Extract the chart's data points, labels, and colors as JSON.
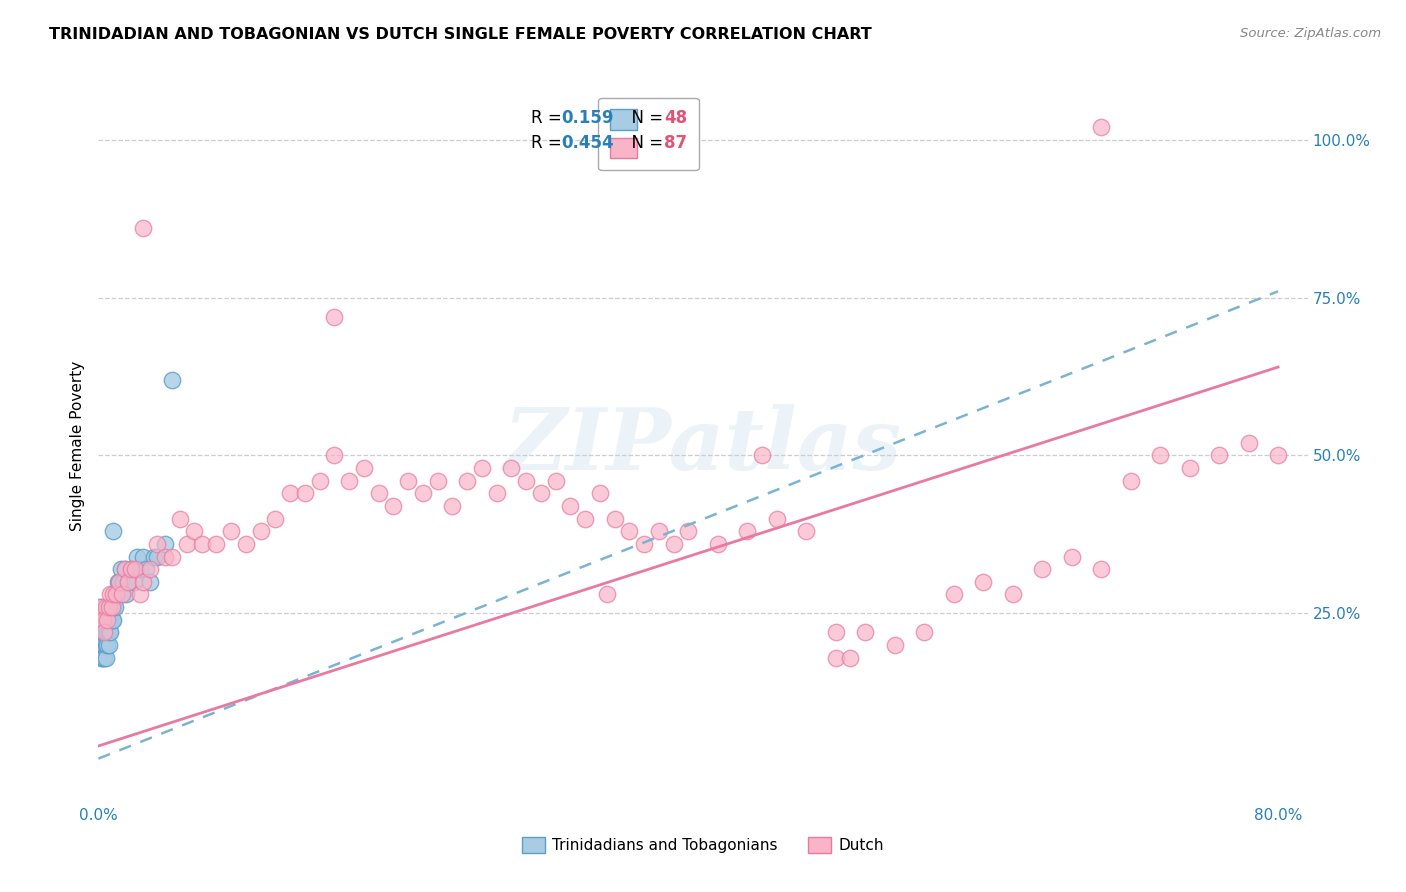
{
  "title": "TRINIDADIAN AND TOBAGONIAN VS DUTCH SINGLE FEMALE POVERTY CORRELATION CHART",
  "source": "Source: ZipAtlas.com",
  "ylabel": "Single Female Poverty",
  "xlim": [
    0.0,
    0.82
  ],
  "ylim": [
    -0.05,
    1.08
  ],
  "color_blue": "#a8cce4",
  "color_pink": "#f9b4c8",
  "color_blue_edge": "#5a9ec9",
  "color_pink_edge": "#e87aa0",
  "color_blue_line": "#7ab3d4",
  "color_pink_line": "#e87aa0",
  "R_blue": 0.159,
  "N_blue": 48,
  "R_pink": 0.454,
  "N_pink": 87,
  "watermark": "ZIPatlas",
  "blue_trend_x0": 0.0,
  "blue_trend_y0": 0.02,
  "blue_trend_x1": 0.8,
  "blue_trend_y1": 0.76,
  "pink_trend_x0": 0.0,
  "pink_trend_y0": 0.04,
  "pink_trend_x1": 0.8,
  "pink_trend_y1": 0.64,
  "blue_x": [
    0.001,
    0.001,
    0.001,
    0.002,
    0.002,
    0.002,
    0.002,
    0.003,
    0.003,
    0.003,
    0.003,
    0.004,
    0.004,
    0.004,
    0.005,
    0.005,
    0.005,
    0.006,
    0.006,
    0.007,
    0.007,
    0.008,
    0.008,
    0.009,
    0.01,
    0.01,
    0.011,
    0.012,
    0.013,
    0.014,
    0.015,
    0.016,
    0.017,
    0.018,
    0.019,
    0.02,
    0.022,
    0.024,
    0.026,
    0.028,
    0.03,
    0.032,
    0.035,
    0.038,
    0.04,
    0.045,
    0.05,
    0.01
  ],
  "blue_y": [
    0.24,
    0.26,
    0.22,
    0.25,
    0.22,
    0.2,
    0.18,
    0.24,
    0.22,
    0.2,
    0.18,
    0.22,
    0.2,
    0.18,
    0.22,
    0.2,
    0.18,
    0.22,
    0.2,
    0.22,
    0.2,
    0.24,
    0.22,
    0.24,
    0.26,
    0.24,
    0.26,
    0.28,
    0.3,
    0.3,
    0.32,
    0.28,
    0.3,
    0.32,
    0.28,
    0.3,
    0.32,
    0.3,
    0.34,
    0.32,
    0.34,
    0.32,
    0.3,
    0.34,
    0.34,
    0.36,
    0.62,
    0.38
  ],
  "pink_x": [
    0.001,
    0.002,
    0.003,
    0.004,
    0.005,
    0.006,
    0.007,
    0.008,
    0.009,
    0.01,
    0.012,
    0.014,
    0.016,
    0.018,
    0.02,
    0.022,
    0.025,
    0.028,
    0.03,
    0.035,
    0.04,
    0.045,
    0.05,
    0.055,
    0.06,
    0.065,
    0.07,
    0.08,
    0.09,
    0.1,
    0.11,
    0.12,
    0.13,
    0.14,
    0.15,
    0.16,
    0.17,
    0.18,
    0.19,
    0.2,
    0.21,
    0.22,
    0.23,
    0.24,
    0.25,
    0.26,
    0.27,
    0.28,
    0.29,
    0.3,
    0.31,
    0.32,
    0.33,
    0.34,
    0.35,
    0.36,
    0.37,
    0.38,
    0.39,
    0.4,
    0.42,
    0.44,
    0.46,
    0.48,
    0.5,
    0.52,
    0.54,
    0.56,
    0.58,
    0.6,
    0.62,
    0.64,
    0.66,
    0.68,
    0.7,
    0.72,
    0.74,
    0.76,
    0.78,
    0.8,
    0.03,
    0.16,
    0.345,
    0.45,
    0.5,
    0.51,
    0.68
  ],
  "pink_y": [
    0.24,
    0.26,
    0.24,
    0.22,
    0.26,
    0.24,
    0.26,
    0.28,
    0.26,
    0.28,
    0.28,
    0.3,
    0.28,
    0.32,
    0.3,
    0.32,
    0.32,
    0.28,
    0.3,
    0.32,
    0.36,
    0.34,
    0.34,
    0.4,
    0.36,
    0.38,
    0.36,
    0.36,
    0.38,
    0.36,
    0.38,
    0.4,
    0.44,
    0.44,
    0.46,
    0.5,
    0.46,
    0.48,
    0.44,
    0.42,
    0.46,
    0.44,
    0.46,
    0.42,
    0.46,
    0.48,
    0.44,
    0.48,
    0.46,
    0.44,
    0.46,
    0.42,
    0.4,
    0.44,
    0.4,
    0.38,
    0.36,
    0.38,
    0.36,
    0.38,
    0.36,
    0.38,
    0.4,
    0.38,
    0.22,
    0.22,
    0.2,
    0.22,
    0.28,
    0.3,
    0.28,
    0.32,
    0.34,
    0.32,
    0.46,
    0.5,
    0.48,
    0.5,
    0.52,
    0.5,
    0.86,
    0.72,
    0.28,
    0.5,
    0.18,
    0.18,
    1.02
  ]
}
